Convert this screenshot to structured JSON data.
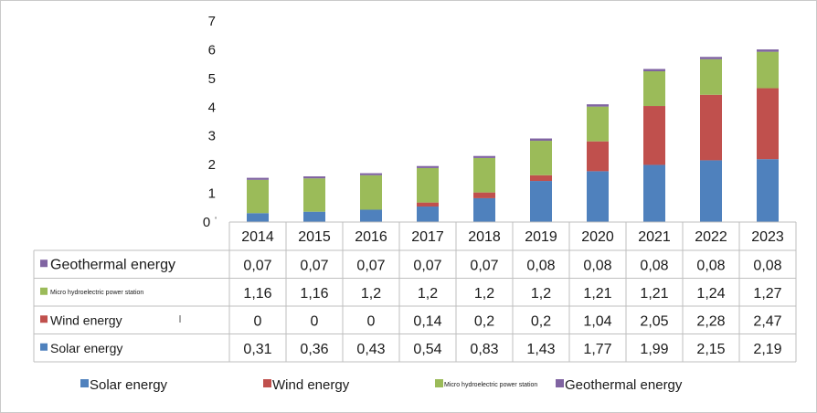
{
  "chart_data": {
    "type": "bar",
    "stacked": true,
    "categories": [
      "2014",
      "2015",
      "2016",
      "2017",
      "2018",
      "2019",
      "2020",
      "2021",
      "2022",
      "2023"
    ],
    "ylim": [
      0,
      7
    ],
    "yticks": [
      "0",
      "1",
      "2",
      "3",
      "4",
      "5",
      "6",
      "7"
    ],
    "series": [
      {
        "name": "Solar energy",
        "color": "#4f81bd",
        "values": [
          0.31,
          0.36,
          0.43,
          0.54,
          0.83,
          1.43,
          1.77,
          1.99,
          2.15,
          2.19
        ],
        "labels": [
          "0,31",
          "0,36",
          "0,43",
          "0,54",
          "0,83",
          "1,43",
          "1,77",
          "1,99",
          "2,15",
          "2,19"
        ]
      },
      {
        "name": "Wind energy",
        "color": "#c0504d",
        "values": [
          0,
          0,
          0,
          0.14,
          0.2,
          0.2,
          1.04,
          2.05,
          2.28,
          2.47
        ],
        "labels": [
          "0",
          "0",
          "0",
          "0,14",
          "0,2",
          "0,2",
          "1,04",
          "2,05",
          "2,28",
          "2,47"
        ]
      },
      {
        "name": "Micro hydroelectric power station",
        "color": "#9bbb59",
        "values": [
          1.16,
          1.16,
          1.2,
          1.2,
          1.2,
          1.2,
          1.21,
          1.21,
          1.24,
          1.27
        ],
        "labels": [
          "1,16",
          "1,16",
          "1,2",
          "1,2",
          "1,2",
          "1,2",
          "1,21",
          "1,21",
          "1,24",
          "1,27"
        ]
      },
      {
        "name": "Geothermal energy",
        "color": "#8064a2",
        "values": [
          0.07,
          0.07,
          0.07,
          0.07,
          0.07,
          0.08,
          0.08,
          0.08,
          0.08,
          0.08
        ],
        "labels": [
          "0,07",
          "0,07",
          "0,07",
          "0,07",
          "0,07",
          "0,08",
          "0,08",
          "0,08",
          "0,08",
          "0,08"
        ]
      }
    ],
    "table_rows_order": [
      "Geothermal energy",
      "Micro hydroelectric power station",
      "Wind energy",
      "Solar energy"
    ],
    "legend_position": "bottom",
    "grid": false
  }
}
